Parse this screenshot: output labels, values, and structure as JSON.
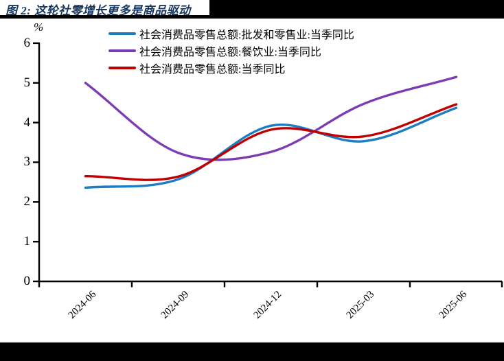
{
  "header": {
    "title": "图 2: 这轮社零增长更多是商品驱动"
  },
  "chart_data": {
    "type": "line",
    "title": "",
    "unit_label": "%",
    "categories": [
      "2024-06",
      "2024-09",
      "2024-12",
      "2025-03",
      "2025-06"
    ],
    "series": [
      {
        "name": "社会消费品零售总额:批发和零售业:当季同比",
        "color": "#1E7CC2",
        "values": [
          2.36,
          2.57,
          3.92,
          3.53,
          4.37
        ]
      },
      {
        "name": "社会消费品零售总额:餐饮业:当季同比",
        "color": "#7D3CB4",
        "values": [
          5.0,
          3.24,
          3.26,
          4.47,
          5.15
        ]
      },
      {
        "name": "社会消费品零售总额:当季同比",
        "color": "#C00000",
        "values": [
          2.65,
          2.64,
          3.82,
          3.65,
          4.46
        ]
      }
    ],
    "ylim": [
      0,
      6
    ],
    "yticks": [
      0,
      1,
      2,
      3,
      4,
      5,
      6
    ],
    "smooth": true,
    "grid": false,
    "legend_position": "top"
  },
  "colors": {
    "title_text": "#17375E",
    "axis": "#000000",
    "header_bar": "#000000",
    "footer_bar": "#000000"
  }
}
